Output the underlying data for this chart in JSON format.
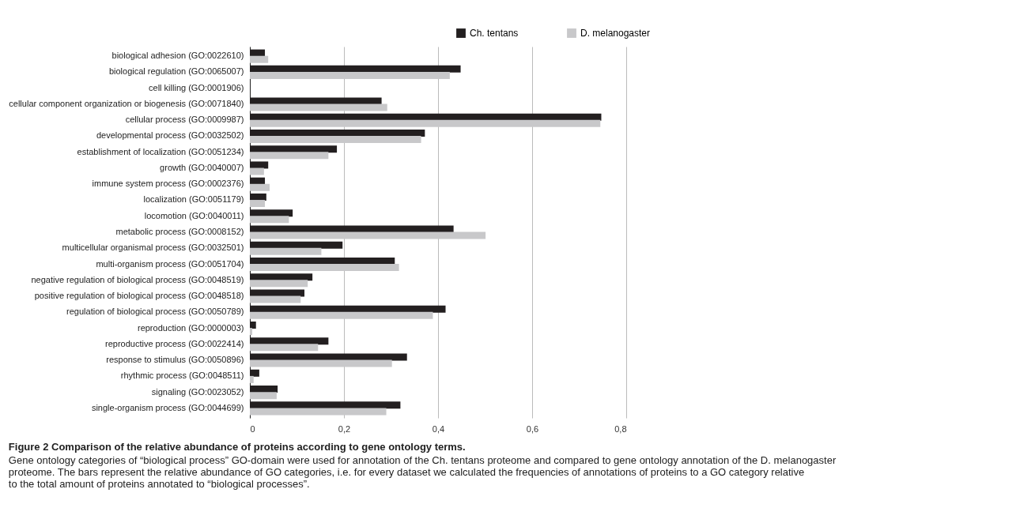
{
  "chart_data": {
    "type": "bar",
    "orientation": "horizontal",
    "title": "Figure 2 Comparison of the relative abundance of proteins according to gene ontology terms.",
    "annotations": [
      "Gene ontology categories of “biological process” GO-domain were used for annotation of the Ch. tentans proteome and compared to gene ontology annotation of the D. melanogaster proteome. The bars represent the relative abundance of GO categories, i.e. for every dataset we calculated the frequencies of annotations of proteins to a GO category relative to the total amount of proteins annotated to “biological processes”."
    ],
    "categories": [
      "biological adhesion (GO:0022610)",
      "biological regulation (GO:0065007)",
      "cell killing (GO:0001906)",
      "cellular component organization or biogenesis (GO:0071840)",
      "cellular process (GO:0009987)",
      "developmental process (GO:0032502)",
      "establishment of localization (GO:0051234)",
      "growth (GO:0040007)",
      "immune system process (GO:0002376)",
      "localization (GO:0051179)",
      "locomotion (GO:0040011)",
      "metabolic process (GO:0008152)",
      "multicellular organismal process (GO:0032501)",
      "multi-organism process (GO:0051704)",
      "negative regulation of biological process (GO:0048519)",
      "positive regulation of biological process (GO:0048518)",
      "regulation of biological process (GO:0050789)",
      "reproduction (GO:0000003)",
      "reproductive process (GO:0022414)",
      "response to stimulus (GO:0050896)",
      "rhythmic process (GO:0048511)",
      "signaling (GO:0023052)",
      "single-organism process (GO:0044699)"
    ],
    "series": [
      {
        "name": "Ch. tentans",
        "color": "#231f20",
        "values": [
          0.032,
          0.448,
          0,
          0.28,
          0.747,
          0.372,
          0.185,
          0.039,
          0.032,
          0.035,
          0.091,
          0.433,
          0.197,
          0.308,
          0.133,
          0.116,
          0.416,
          0.013,
          0.167,
          0.334,
          0.02,
          0.059,
          0.32
        ]
      },
      {
        "name": "D. melanogaster",
        "color": "#c8c8ca",
        "values": [
          0.039,
          0.425,
          0,
          0.292,
          0.745,
          0.364,
          0.167,
          0.03,
          0.042,
          0.032,
          0.083,
          0.501,
          0.152,
          0.317,
          0.123,
          0.108,
          0.389,
          0.005,
          0.145,
          0.302,
          0.008,
          0.057,
          0.29
        ]
      }
    ],
    "xlim": [
      0,
      0.8
    ],
    "xticks": [
      0,
      {
        "value": 0.2,
        "label": "0,2"
      },
      {
        "value": 0.4,
        "label": "0,4"
      },
      {
        "value": 0.6,
        "label": "0,6"
      },
      {
        "value": 0.8,
        "label": "0,8"
      }
    ],
    "grid": "x",
    "legend": "top right"
  }
}
